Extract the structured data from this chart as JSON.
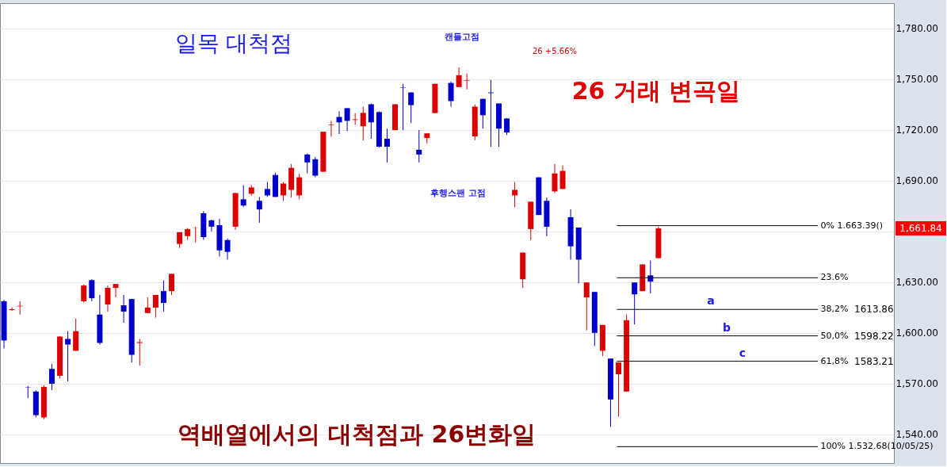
{
  "chart_data": {
    "type": "candlestick",
    "categories": [
      null,
      null,
      null,
      null,
      null,
      null,
      null,
      null,
      null,
      null,
      null,
      null,
      null,
      null,
      null,
      null,
      null,
      null,
      null,
      null,
      null,
      null,
      null,
      null,
      null,
      null,
      null,
      null,
      null,
      null,
      null,
      null,
      null,
      null,
      null,
      null,
      null,
      null,
      null,
      null,
      null,
      null,
      null,
      null,
      null,
      null,
      null,
      null,
      null,
      null,
      null,
      null,
      null,
      null,
      null,
      null,
      null,
      null,
      null,
      null,
      null,
      null,
      null,
      null,
      null,
      null,
      null,
      null,
      null,
      null,
      null,
      null,
      null,
      null,
      null,
      null,
      null,
      null,
      null,
      null,
      null,
      null,
      null,
      null,
      null,
      null,
      null,
      null,
      null,
      null,
      null,
      null,
      null,
      null,
      null,
      null,
      null,
      null,
      null,
      null,
      null,
      null,
      null,
      null,
      null,
      null,
      null,
      null,
      null,
      null,
      null,
      null
    ],
    "ohlc": [
      [
        1618.7,
        1619.6,
        1590.8,
        1595.5
      ],
      [
        1613.5,
        1615,
        1613,
        1614
      ],
      [
        1615.7,
        1618.7,
        1610.8,
        1616
      ],
      [
        1567.8,
        1568.5,
        1561.5,
        1567.6
      ],
      [
        1565.3,
        1566,
        1550,
        1551.3
      ],
      [
        1550,
        1569,
        1549,
        1568
      ],
      [
        1578.7,
        1581.5,
        1566.2,
        1569.9
      ],
      [
        1574.6,
        1598,
        1573,
        1597.8
      ],
      [
        1596.4,
        1601,
        1571.3,
        1593.1
      ],
      [
        1589.4,
        1608.5,
        1589.4,
        1601
      ],
      [
        1618.7,
        1628.5,
        1618,
        1628
      ],
      [
        1631.2,
        1631.7,
        1618.7,
        1620.5
      ],
      [
        1610.8,
        1622.4,
        1593.1,
        1594.1
      ],
      [
        1616.8,
        1628,
        1612.6,
        1626.6
      ],
      [
        1626.6,
        1628.9,
        1621,
        1628.9
      ],
      [
        1616.3,
        1622.4,
        1606,
        1612.6
      ],
      [
        1620,
        1620,
        1582.5,
        1587
      ],
      [
        1594,
        1596.4,
        1580.6,
        1594.5
      ],
      [
        1611.7,
        1621,
        1611.7,
        1615
      ],
      [
        1614.9,
        1622.4,
        1609,
        1622.4
      ],
      [
        1624.7,
        1631,
        1612.6,
        1617.7
      ],
      [
        1624.7,
        1634.9,
        1622.4,
        1634.9
      ],
      [
        1652.6,
        1659.5,
        1650.2,
        1659.5
      ],
      [
        1657.2,
        1662,
        1655,
        1661.4
      ],
      [
        1661.8,
        1662.8,
        1653.5,
        1661.9
      ],
      [
        1670.7,
        1672,
        1655,
        1656.7
      ],
      [
        1666.5,
        1667,
        1660,
        1662.8
      ],
      [
        1663.7,
        1667.4,
        1645.1,
        1648.8
      ],
      [
        1654.9,
        1655.8,
        1643.3,
        1647.9
      ],
      [
        1662.8,
        1682.7,
        1661,
        1682.7
      ],
      [
        1679,
        1687.4,
        1674.4,
        1675.3
      ],
      [
        1682.3,
        1687.4,
        1681.3,
        1686
      ],
      [
        1678.1,
        1680.4,
        1665.1,
        1673
      ],
      [
        1685.1,
        1689.2,
        1680.4,
        1681.3
      ],
      [
        1693.4,
        1694.8,
        1680.4,
        1680.4
      ],
      [
        1681.3,
        1689.2,
        1678.1,
        1688.3
      ],
      [
        1684.6,
        1699.9,
        1680,
        1697.6
      ],
      [
        1681.3,
        1694,
        1679,
        1692
      ],
      [
        1705.5,
        1706,
        1694.3,
        1700.8
      ],
      [
        1702.7,
        1704,
        1692,
        1693
      ],
      [
        1695.3,
        1719,
        1695.3,
        1719
      ],
      [
        1722.8,
        1725.4,
        1716,
        1723.1
      ],
      [
        1727.7,
        1731,
        1717.6,
        1724.5
      ],
      [
        1732.9,
        1732.9,
        1719.4,
        1725.4
      ],
      [
        1725.9,
        1730,
        1723,
        1726.3
      ],
      [
        1722.2,
        1733.8,
        1713.8,
        1730.1
      ],
      [
        1735.2,
        1735.7,
        1714.8,
        1724.5
      ],
      [
        1730.6,
        1731,
        1709.6,
        1710.1
      ],
      [
        1714.8,
        1720.8,
        1700.8,
        1710.1
      ],
      [
        1719.9,
        1735.2,
        1719.9,
        1735.2
      ],
      [
        1745,
        1747.3,
        1719.9,
        1744.8
      ],
      [
        1742.2,
        1742.2,
        1724.1,
        1734.7
      ],
      [
        1708.3,
        1719.9,
        1700.8,
        1705.5
      ],
      [
        1715.2,
        1718,
        1712,
        1718
      ],
      [
        1730,
        1747.3,
        1730,
        1747.3
      ],
      null,
      [
        1747.8,
        1748.7,
        1733.8,
        1737.1
      ],
      [
        1745.4,
        1757,
        1745.4,
        1752.4
      ],
      [
        1749.1,
        1753.3,
        1744,
        1749.4
      ],
      [
        1716.2,
        1735,
        1714,
        1733.8
      ],
      [
        1738.4,
        1738.4,
        1720.8,
        1728.7
      ],
      [
        1742.2,
        1749.6,
        1710.1,
        1741.8
      ],
      [
        1735.7,
        1735.7,
        1710.1,
        1720.8
      ],
      [
        1726.8,
        1727,
        1717,
        1718.5
      ],
      [
        1681.3,
        1689.2,
        1674.4,
        1684.6
      ],
      [
        1631.7,
        1647.5,
        1626.6,
        1647.5
      ],
      [
        1661.4,
        1677.6,
        1654.9,
        1677.6
      ],
      [
        1692,
        1692,
        1669.7,
        1669.7
      ],
      [
        1678.1,
        1680,
        1657.2,
        1662.8
      ],
      [
        1683.7,
        1699.9,
        1682.7,
        1694.3
      ],
      [
        1685.1,
        1699,
        1685.1,
        1695.8
      ],
      [
        1668.4,
        1673,
        1643.3,
        1651.2
      ],
      [
        1662.3,
        1662.3,
        1629.3,
        1643.3
      ],
      [
        1621,
        1629.8,
        1601.5,
        1629.8
      ],
      [
        1624.2,
        1624.2,
        1592.2,
        1600
      ],
      [
        1589.4,
        1604.7,
        1586.2,
        1604.7
      ],
      [
        1584.8,
        1584.8,
        1544.4,
        1560.6
      ],
      [
        1575.5,
        1582.5,
        1550.5,
        1582.5
      ],
      [
        1565.3,
        1610.8,
        1565.3,
        1607.5
      ],
      [
        1629.8,
        1629.8,
        1605,
        1622.8
      ],
      [
        1624.7,
        1640.5,
        1624.7,
        1640.5
      ],
      [
        1634,
        1642.8,
        1623.3,
        1630.3
      ],
      [
        1644.2,
        1662.8,
        1644.2,
        1661.8
      ],
      null,
      null,
      null,
      null,
      null,
      null,
      null,
      null,
      null,
      null,
      null,
      null,
      null,
      null,
      null,
      null,
      null,
      null,
      null,
      null,
      null,
      null,
      null,
      null,
      null,
      null,
      null,
      null,
      null
    ],
    "colors": [
      "#0000cc",
      "#dd0000",
      "#dd0000",
      "#0000cc",
      "#0000cc",
      "#dd0000",
      "#0000cc",
      "#dd0000",
      "#0000cc",
      "#dd0000",
      "#dd0000",
      "#0000cc",
      "#0000cc",
      "#dd0000",
      "#dd0000",
      "#0000cc",
      "#0000cc",
      "#dd0000",
      "#dd0000",
      "#dd0000",
      "#0000cc",
      "#dd0000",
      "#dd0000",
      "#dd0000",
      "#dd0000",
      "#0000cc",
      "#0000cc",
      "#0000cc",
      "#0000cc",
      "#dd0000",
      "#0000cc",
      "#dd0000",
      "#0000cc",
      "#0000cc",
      "#0000cc",
      "#dd0000",
      "#dd0000",
      "#dd0000",
      "#0000cc",
      "#0000cc",
      "#dd0000",
      "#dd0000",
      "#0000cc",
      "#0000cc",
      "#dd0000",
      "#dd0000",
      "#0000cc",
      "#0000cc",
      "#0000cc",
      "#dd0000",
      "#0000cc",
      "#0000cc",
      "#0000cc",
      "#dd0000",
      "#dd0000",
      null,
      "#0000cc",
      "#dd0000",
      "#dd0000",
      "#dd0000",
      "#0000cc",
      "#0000cc",
      "#0000cc",
      "#0000cc",
      "#dd0000",
      "#dd0000",
      "#dd0000",
      "#0000cc",
      "#0000cc",
      "#dd0000",
      "#dd0000",
      "#0000cc",
      "#0000cc",
      "#dd0000",
      "#0000cc",
      "#dd0000",
      "#0000cc",
      "#dd0000",
      "#dd0000",
      "#0000cc",
      "#dd0000",
      "#0000cc",
      "#dd0000",
      null,
      null,
      null,
      null,
      null,
      null,
      null,
      null,
      null,
      null,
      null,
      null,
      null,
      null,
      null,
      null,
      null,
      null,
      null,
      null,
      null,
      null,
      null,
      null,
      null,
      null,
      null,
      null,
      null
    ],
    "ylim": [
      1523,
      1795
    ],
    "yticks": [
      {
        "value": 1540,
        "label": "1,540.00"
      },
      {
        "value": 1570,
        "label": "1,570.00"
      },
      {
        "value": 1600,
        "label": "1,600.00"
      },
      {
        "value": 1630,
        "label": "1,630.00"
      },
      {
        "value": 1660,
        "label": null
      },
      {
        "value": 1690,
        "label": "1,690.00"
      },
      {
        "value": 1720,
        "label": "1,720.00"
      },
      {
        "value": 1750,
        "label": "1,750.00"
      },
      {
        "value": 1780,
        "label": "1,780.00"
      }
    ],
    "grid": "y",
    "tick_labels": "y",
    "ref_lines": [
      {
        "axis": "y",
        "value": 1663.39,
        "color": "#000000"
      },
      {
        "axis": "y",
        "value": 1632.6,
        "color": "#000000"
      },
      {
        "axis": "y",
        "value": 1613.86,
        "color": "#000000"
      },
      {
        "axis": "y",
        "value": 1598.22,
        "color": "#000000"
      },
      {
        "axis": "y",
        "value": 1583.21,
        "color": "#000000"
      },
      {
        "axis": "y",
        "value": 1532.68,
        "color": "#000000"
      }
    ],
    "annotations": [
      "일목 대척점",
      "캔들고점",
      "26   +5.66%",
      "26 거래 변곡일",
      "후행스팬 고점",
      "역배열에서의 대척점과 26변화일",
      "a",
      "b",
      "c",
      "1613.86",
      "1598.22",
      "1583.21",
      "1,661.84",
      "0%  1.663.39()",
      "23.6%",
      "38,2%",
      "50,0%",
      "61,8%",
      "100% 1.532.68(10/05/25)"
    ]
  }
}
